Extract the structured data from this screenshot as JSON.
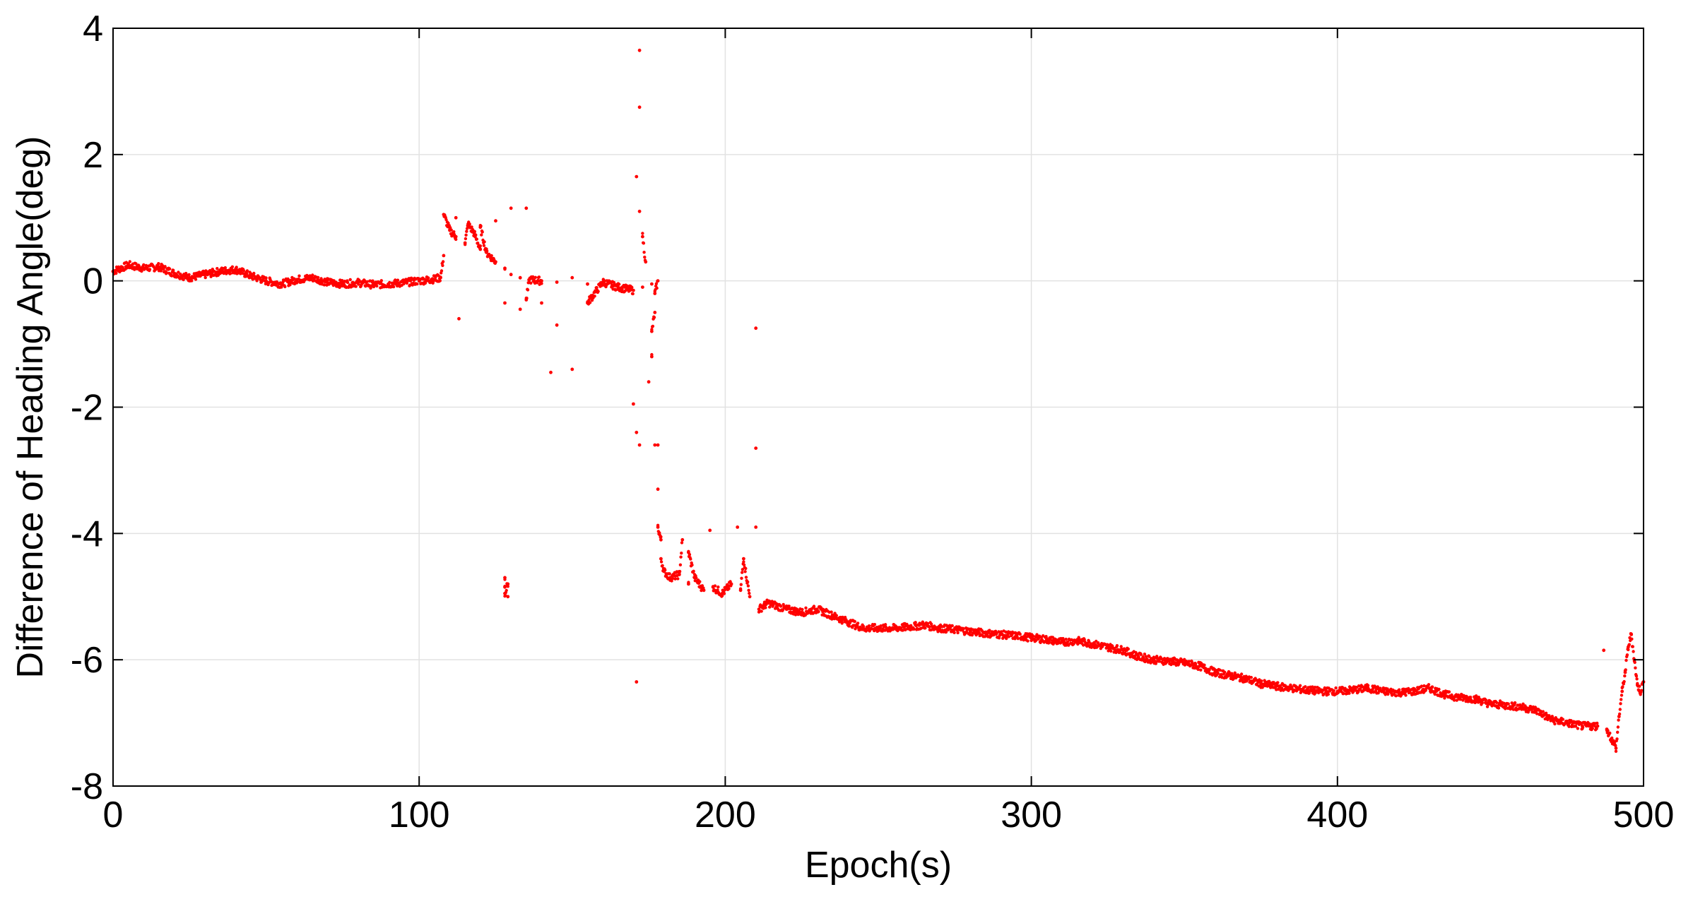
{
  "chart_data": {
    "type": "scatter",
    "title": "",
    "xlabel": "Epoch(s)",
    "ylabel": "Difference of Heading Angle(deg)",
    "xlim": [
      0,
      500
    ],
    "ylim": [
      -8,
      4
    ],
    "xticks": [
      0,
      100,
      200,
      300,
      400,
      500
    ],
    "yticks": [
      4,
      2,
      0,
      -2,
      -4,
      -6,
      -8
    ],
    "xtick_labels": [
      "0",
      "100",
      "200",
      "300",
      "400",
      "500"
    ],
    "ytick_labels": [
      "4",
      "2",
      "0",
      "-2",
      "-4",
      "-6",
      "-8"
    ],
    "grid": true,
    "marker_color": "#ff0000",
    "series": [
      {
        "points": [
          [
            0,
            0.15
          ],
          [
            5,
            0.25
          ],
          [
            10,
            0.2
          ],
          [
            15,
            0.22
          ],
          [
            20,
            0.12
          ],
          [
            25,
            0.05
          ],
          [
            30,
            0.1
          ],
          [
            35,
            0.15
          ],
          [
            40,
            0.18
          ],
          [
            45,
            0.08
          ],
          [
            50,
            0.0
          ],
          [
            55,
            -0.05
          ],
          [
            60,
            0.02
          ],
          [
            65,
            0.05
          ],
          [
            70,
            -0.02
          ],
          [
            75,
            -0.05
          ],
          [
            80,
            -0.03
          ],
          [
            85,
            -0.06
          ],
          [
            90,
            -0.05
          ],
          [
            95,
            -0.03
          ],
          [
            100,
            0.0
          ],
          [
            104,
            0.02
          ],
          [
            107,
            0.05
          ],
          [
            108,
            0.4
          ],
          [
            110,
            0.8
          ],
          [
            112,
            0.7
          ],
          [
            115,
            0.6
          ],
          [
            118,
            0.75
          ],
          [
            120,
            0.5
          ],
          [
            122,
            0.45
          ],
          [
            125,
            0.3
          ],
          [
            128,
            0.2
          ],
          [
            130,
            0.1
          ],
          [
            133,
            0.05
          ],
          [
            136,
            0.02
          ],
          [
            140,
            0.0
          ],
          [
            145,
            -0.02
          ],
          [
            150,
            0.05
          ],
          [
            155,
            -0.05
          ],
          [
            160,
            -0.02
          ],
          [
            165,
            -0.1
          ],
          [
            170,
            -0.15
          ],
          [
            173,
            -0.1
          ],
          [
            176,
            -0.05
          ],
          [
            178,
            0.0
          ],
          [
            108,
            1.05
          ],
          [
            112,
            1.0
          ],
          [
            116,
            0.9
          ],
          [
            120,
            0.85
          ],
          [
            125,
            0.95
          ],
          [
            130,
            1.15
          ],
          [
            135,
            1.15
          ],
          [
            113,
            -0.6
          ],
          [
            128,
            -0.35
          ],
          [
            133,
            -0.45
          ],
          [
            135,
            -0.3
          ],
          [
            140,
            -0.35
          ],
          [
            143,
            -1.45
          ],
          [
            145,
            -0.7
          ],
          [
            150,
            -1.4
          ],
          [
            155,
            -0.35
          ],
          [
            128,
            -4.7
          ],
          [
            128,
            -4.85
          ],
          [
            128,
            -4.95
          ],
          [
            129,
            -4.8
          ],
          [
            129,
            -5.0
          ],
          [
            172,
            3.65
          ],
          [
            172,
            2.75
          ],
          [
            171,
            1.65
          ],
          [
            172,
            1.1
          ],
          [
            173,
            0.7
          ],
          [
            174,
            0.3
          ],
          [
            170,
            -1.95
          ],
          [
            171,
            -2.4
          ],
          [
            172,
            -2.6
          ],
          [
            175,
            -1.6
          ],
          [
            176,
            -1.2
          ],
          [
            176,
            -0.8
          ],
          [
            177,
            -0.5
          ],
          [
            177,
            -2.6
          ],
          [
            178,
            -2.6
          ],
          [
            178,
            -3.3
          ],
          [
            178,
            -3.9
          ],
          [
            177,
            -0.2
          ],
          [
            171,
            -6.35
          ],
          [
            179,
            -4.1
          ],
          [
            179,
            -4.4
          ],
          [
            180,
            -4.6
          ],
          [
            182,
            -4.7
          ],
          [
            185,
            -4.65
          ],
          [
            188,
            -4.8
          ],
          [
            190,
            -4.7
          ],
          [
            193,
            -4.9
          ],
          [
            196,
            -4.85
          ],
          [
            199,
            -4.95
          ],
          [
            202,
            -4.8
          ],
          [
            205,
            -4.9
          ],
          [
            208,
            -5.0
          ],
          [
            211,
            -5.2
          ],
          [
            214,
            -5.1
          ],
          [
            217,
            -5.15
          ],
          [
            220,
            -5.2
          ],
          [
            225,
            -5.25
          ],
          [
            230,
            -5.2
          ],
          [
            235,
            -5.3
          ],
          [
            240,
            -5.4
          ],
          [
            245,
            -5.5
          ],
          [
            250,
            -5.5
          ],
          [
            255,
            -5.5
          ],
          [
            260,
            -5.48
          ],
          [
            265,
            -5.45
          ],
          [
            270,
            -5.5
          ],
          [
            275,
            -5.52
          ],
          [
            280,
            -5.55
          ],
          [
            285,
            -5.58
          ],
          [
            290,
            -5.6
          ],
          [
            295,
            -5.62
          ],
          [
            300,
            -5.65
          ],
          [
            305,
            -5.68
          ],
          [
            310,
            -5.72
          ],
          [
            315,
            -5.7
          ],
          [
            320,
            -5.75
          ],
          [
            325,
            -5.8
          ],
          [
            330,
            -5.85
          ],
          [
            335,
            -5.95
          ],
          [
            340,
            -6.0
          ],
          [
            345,
            -6.02
          ],
          [
            350,
            -6.05
          ],
          [
            355,
            -6.1
          ],
          [
            360,
            -6.2
          ],
          [
            365,
            -6.25
          ],
          [
            370,
            -6.3
          ],
          [
            375,
            -6.38
          ],
          [
            380,
            -6.42
          ],
          [
            385,
            -6.45
          ],
          [
            390,
            -6.48
          ],
          [
            395,
            -6.5
          ],
          [
            400,
            -6.5
          ],
          [
            405,
            -6.48
          ],
          [
            410,
            -6.45
          ],
          [
            415,
            -6.5
          ],
          [
            420,
            -6.52
          ],
          [
            425,
            -6.5
          ],
          [
            430,
            -6.45
          ],
          [
            435,
            -6.55
          ],
          [
            440,
            -6.6
          ],
          [
            445,
            -6.62
          ],
          [
            450,
            -6.7
          ],
          [
            455,
            -6.72
          ],
          [
            460,
            -6.75
          ],
          [
            465,
            -6.8
          ],
          [
            470,
            -6.95
          ],
          [
            475,
            -7.0
          ],
          [
            480,
            -7.05
          ],
          [
            485,
            -7.05
          ],
          [
            488,
            -7.1
          ],
          [
            490,
            -7.3
          ],
          [
            491,
            -7.4
          ],
          [
            492,
            -6.9
          ],
          [
            493,
            -6.5
          ],
          [
            494,
            -6.2
          ],
          [
            495,
            -5.8
          ],
          [
            496,
            -5.6
          ],
          [
            497,
            -6.0
          ],
          [
            498,
            -6.4
          ],
          [
            499,
            -6.5
          ],
          [
            500,
            -6.35
          ],
          [
            186,
            -4.1
          ],
          [
            188,
            -4.3
          ],
          [
            195,
            -3.95
          ],
          [
            204,
            -3.9
          ],
          [
            206,
            -4.4
          ],
          [
            210,
            -3.9
          ],
          [
            210,
            -0.75
          ],
          [
            210,
            -2.65
          ],
          [
            487,
            -5.85
          ]
        ]
      }
    ]
  }
}
